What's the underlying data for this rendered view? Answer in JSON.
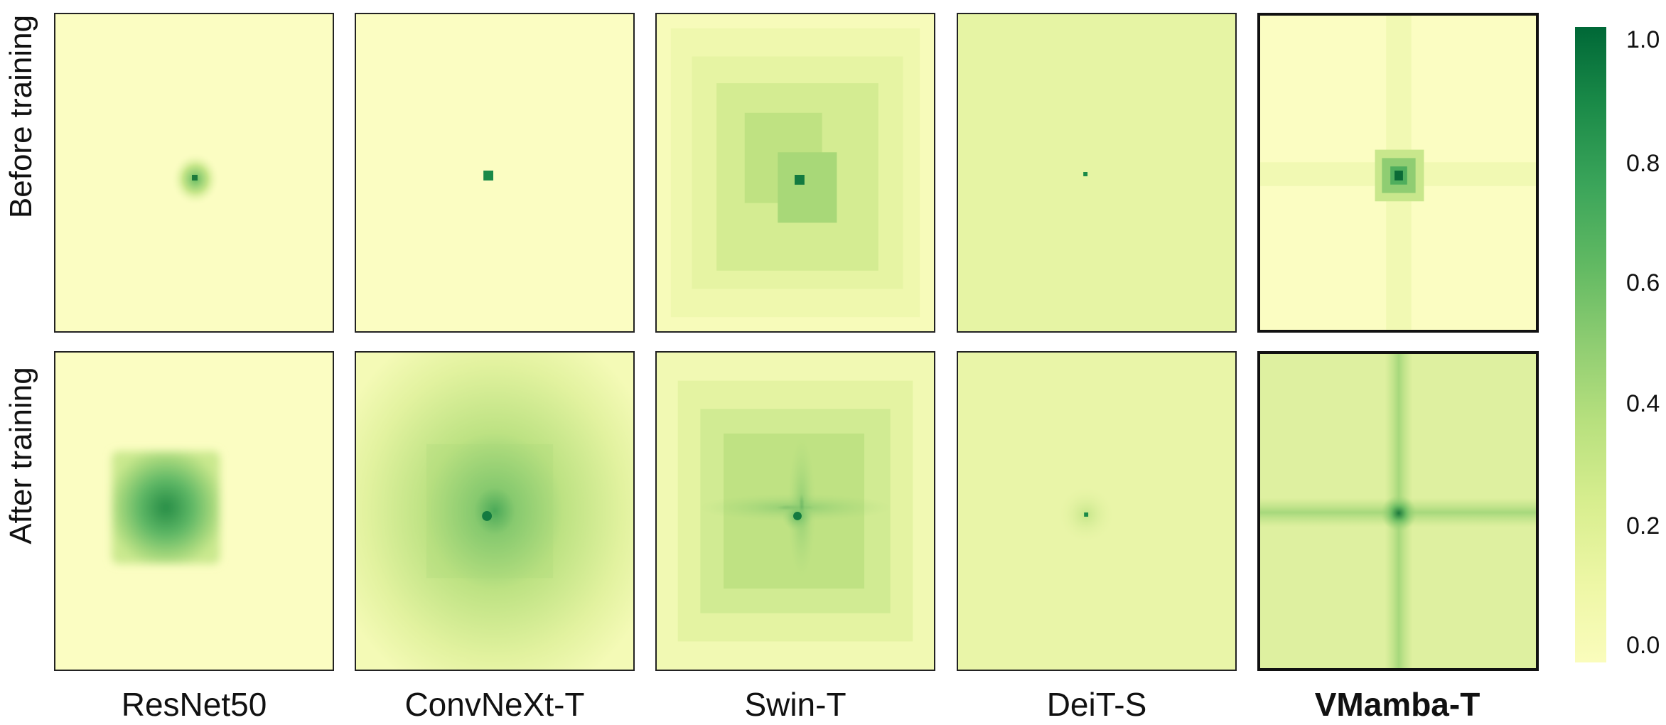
{
  "row_labels": [
    "Before training",
    "After training"
  ],
  "models": [
    {
      "name": "ResNet50",
      "highlight": false
    },
    {
      "name": "ConvNeXt-T",
      "highlight": false
    },
    {
      "name": "Swin-T",
      "highlight": false
    },
    {
      "name": "DeiT-S",
      "highlight": false
    },
    {
      "name": "VMamba-T",
      "highlight": true
    }
  ],
  "colorbar": {
    "ticks": [
      "1.0",
      "0.8",
      "0.6",
      "0.4",
      "0.2",
      "0.0"
    ],
    "colors": {
      "max": "#006837",
      "mid": "#8fcd72",
      "min": "#fafcbc"
    }
  }
}
